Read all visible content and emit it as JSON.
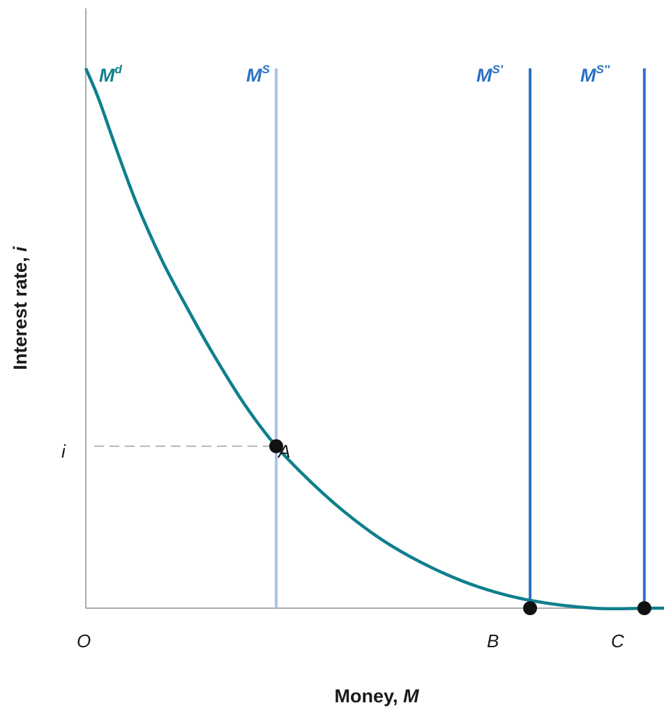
{
  "chart_data": {
    "type": "line",
    "xlabel": "Money, M",
    "xlabel_text": "Money, ",
    "xlabel_var": "M",
    "ylabel": "Interest rate, i",
    "ylabel_text": "Interest rate, ",
    "ylabel_var": "i",
    "origin_label": "O",
    "xlim": [
      0,
      100
    ],
    "ylim": [
      0,
      100
    ],
    "grid": false,
    "colors": {
      "demand": "#0f7f8c",
      "supply_initial": "#a9c3e6",
      "supply_shift": "#2b72c4",
      "point": "#111111",
      "guide": "#b5b5b5",
      "axis": "#aaaaaa"
    },
    "series": [
      {
        "name": "Md",
        "label_main": "M",
        "label_sup": "d",
        "kind": "demand-curve",
        "x": [
          0,
          2,
          5,
          8,
          12,
          16,
          20,
          25,
          30,
          36,
          42,
          48,
          55,
          62,
          70,
          80,
          90,
          100
        ],
        "y": [
          90,
          85,
          76,
          67.5,
          58,
          50,
          42.5,
          34,
          27,
          20.5,
          15,
          10.5,
          6.5,
          3.5,
          1.3,
          0,
          0,
          0
        ]
      },
      {
        "name": "MS",
        "label_main": "M",
        "label_sup": "S",
        "kind": "vertical-supply",
        "x": 30
      },
      {
        "name": "MS'",
        "label_main": "M",
        "label_sup": "S′",
        "kind": "vertical-supply",
        "x": 70
      },
      {
        "name": "MS\"",
        "label_main": "M",
        "label_sup": "S″",
        "kind": "vertical-supply",
        "x": 88
      }
    ],
    "points": [
      {
        "name": "A",
        "x": 30,
        "y": 27
      },
      {
        "name": "B",
        "x": 70,
        "y": 0
      },
      {
        "name": "C",
        "x": 88,
        "y": 0
      }
    ],
    "annotations": [
      {
        "text": "i",
        "kind": "y-tick",
        "y": 27
      }
    ]
  }
}
